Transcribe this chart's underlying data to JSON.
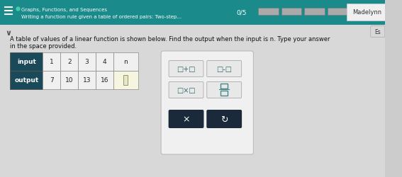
{
  "bg_color": "#cccccc",
  "header_bg": "#1a8a8a",
  "header_title": "Graphs, Functions, and Sequences",
  "header_subtitle": "Writing a function rule given a table of ordered pairs: Two-step...",
  "header_score": "0/5",
  "header_user": "Madelynn",
  "body_bg": "#d8d8d8",
  "body_text_line1": "A table of values of a linear function is shown below. Find the output when the input is n. Type your answer",
  "body_text_line2": "in the space provided.",
  "table_header_bg": "#1a4a5a",
  "input_row_label": "input",
  "output_row_label": "output",
  "input_values": [
    "1",
    "2",
    "3",
    "4",
    "n"
  ],
  "output_values": [
    "7",
    "10",
    "13",
    "16",
    ""
  ],
  "panel_bg": "#f0f0f0",
  "panel_border": "#bbbbbb",
  "op_btn_bg": "#e8e8e8",
  "op_btn_border": "#aaaaaa",
  "dark_btn_bg": "#1a2a3a",
  "cell_bg": "#f0f0f0",
  "answer_cell_bg": "#f5f5e0",
  "progress_bar_bg": "#888888",
  "name_box_bg": "#f0f0f0",
  "name_box_border": "#cccccc",
  "es_btn_bg": "#d8d8d8",
  "es_btn_border": "#aaaaaa",
  "chevron_color": "#555555",
  "teal_dot": "#44ccaa"
}
